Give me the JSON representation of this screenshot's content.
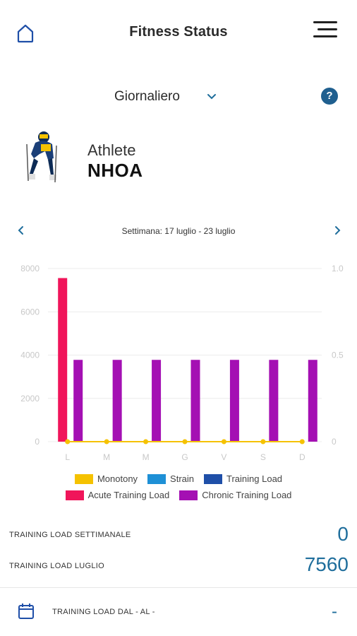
{
  "header": {
    "title": "Fitness Status",
    "home_icon": "home-icon",
    "menu_icon": "menu-icon"
  },
  "period": {
    "label": "Giornaliero",
    "help_label": "?"
  },
  "athlete": {
    "role": "Athlete",
    "name": "NHOA"
  },
  "week": {
    "label": "Settimana: 17 luglio - 23 luglio"
  },
  "colors": {
    "monotony": "#f5c200",
    "strain": "#1e90d6",
    "training_load": "#1f4fa8",
    "acute": "#f0155a",
    "chronic": "#a410b3",
    "accent": "#1f6e9c"
  },
  "chart_data": {
    "type": "bar",
    "categories": [
      "L",
      "M",
      "M",
      "G",
      "V",
      "S",
      "D"
    ],
    "y_left_ticks": [
      "8000",
      "6000",
      "4000",
      "2000",
      "0"
    ],
    "y_right_ticks": [
      "1.0",
      "0.5",
      "0"
    ],
    "ylim_left": [
      0,
      8000
    ],
    "ylim_right": [
      0,
      1.0
    ],
    "grid": true,
    "series": [
      {
        "name": "Monotony",
        "type": "line",
        "axis": "right",
        "values": [
          0,
          0,
          0,
          0,
          0,
          0,
          0
        ]
      },
      {
        "name": "Strain",
        "type": "bar",
        "axis": "left",
        "values": [
          0,
          0,
          0,
          0,
          0,
          0,
          0
        ]
      },
      {
        "name": "Training Load",
        "type": "bar",
        "axis": "left",
        "values": [
          0,
          0,
          0,
          0,
          0,
          0,
          0
        ]
      },
      {
        "name": "Acute Training Load",
        "type": "bar",
        "axis": "left",
        "values": [
          7560,
          0,
          0,
          0,
          0,
          0,
          0
        ]
      },
      {
        "name": "Chronic Training Load",
        "type": "bar",
        "axis": "left",
        "values": [
          3780,
          3780,
          3780,
          3780,
          3780,
          3780,
          3780
        ]
      }
    ],
    "legend": {
      "placement": "bottom",
      "rows": [
        [
          "Monotony",
          "Strain",
          "Training Load"
        ],
        [
          "Acute Training Load",
          "Chronic Training Load"
        ]
      ]
    }
  },
  "stats": {
    "weekly_label": "TRAINING LOAD SETTIMANALE",
    "weekly_value": "0",
    "monthly_label": "TRAINING LOAD LUGLIO",
    "monthly_value": "7560",
    "range_label": "TRAINING LOAD DAL - AL -",
    "range_value": "-"
  }
}
